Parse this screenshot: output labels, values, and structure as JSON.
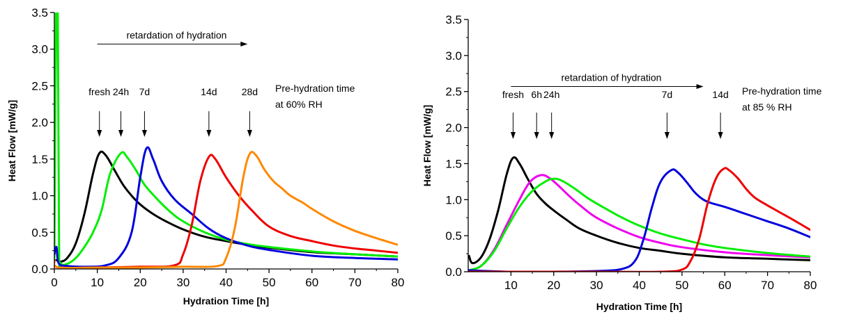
{
  "chart_data": [
    {
      "type": "line",
      "title": "",
      "xlabel": "Hydration Time [h]",
      "ylabel": "Heat Flow [mW/g]",
      "xlim": [
        0,
        80
      ],
      "ylim": [
        0,
        3.5
      ],
      "xticks": [
        0,
        10,
        20,
        30,
        40,
        50,
        60,
        70,
        80
      ],
      "yticks": [
        0.0,
        0.5,
        1.0,
        1.5,
        2.0,
        2.5,
        3.0,
        3.5
      ],
      "tick_labels_x": [
        "0",
        "10",
        "20",
        "30",
        "40",
        "50",
        "60",
        "70",
        "80"
      ],
      "tick_labels_y": [
        "0.0",
        "0.5",
        "1.0",
        "1.5",
        "2.0",
        "2.5",
        "3.0",
        "3.5"
      ],
      "grid": false,
      "legend": null,
      "retardation_label": "retardation of hydration",
      "retardation_arrow": {
        "from": 10,
        "to": 45,
        "y": 3.07
      },
      "condition_label": [
        "Pre-hydration time",
        "at 60% RH"
      ],
      "series": [
        {
          "label": "fresh",
          "color": "#000000",
          "arrow_x": 10.5,
          "points": [
            [
              0.5,
              0.12
            ],
            [
              1.5,
              0.1
            ],
            [
              3,
              0.15
            ],
            [
              5,
              0.35
            ],
            [
              7,
              0.75
            ],
            [
              9,
              1.3
            ],
            [
              10.5,
              1.58
            ],
            [
              12,
              1.55
            ],
            [
              14,
              1.35
            ],
            [
              16,
              1.15
            ],
            [
              18,
              1.0
            ],
            [
              20,
              0.88
            ],
            [
              23,
              0.75
            ],
            [
              26,
              0.65
            ],
            [
              30,
              0.54
            ],
            [
              35,
              0.44
            ],
            [
              40,
              0.38
            ],
            [
              45,
              0.33
            ],
            [
              50,
              0.29
            ],
            [
              60,
              0.23
            ],
            [
              70,
              0.2
            ],
            [
              80,
              0.17
            ]
          ]
        },
        {
          "label": "24h",
          "color": "#00ee00",
          "arrow_x": 15.5,
          "spike": true,
          "points": [
            [
              0,
              0.1
            ],
            [
              0.4,
              3.5
            ],
            [
              0.8,
              3.5
            ],
            [
              1.1,
              0.3
            ],
            [
              1.5,
              0.08
            ],
            [
              3,
              0.07
            ],
            [
              5,
              0.15
            ],
            [
              7,
              0.3
            ],
            [
              9,
              0.5
            ],
            [
              11,
              0.8
            ],
            [
              13,
              1.3
            ],
            [
              15.5,
              1.58
            ],
            [
              17,
              1.52
            ],
            [
              19,
              1.35
            ],
            [
              21,
              1.15
            ],
            [
              24,
              0.95
            ],
            [
              27,
              0.78
            ],
            [
              30,
              0.65
            ],
            [
              35,
              0.5
            ],
            [
              40,
              0.4
            ],
            [
              45,
              0.34
            ],
            [
              50,
              0.3
            ],
            [
              60,
              0.24
            ],
            [
              70,
              0.2
            ],
            [
              80,
              0.17
            ]
          ]
        },
        {
          "label": "7d",
          "color": "#0000dd",
          "arrow_x": 21,
          "spike": true,
          "points": [
            [
              0,
              0.2
            ],
            [
              0.5,
              0.3
            ],
            [
              1,
              0.08
            ],
            [
              3,
              0.04
            ],
            [
              8,
              0.03
            ],
            [
              12,
              0.05
            ],
            [
              15,
              0.15
            ],
            [
              18,
              0.5
            ],
            [
              20,
              1.25
            ],
            [
              21.5,
              1.65
            ],
            [
              23,
              1.5
            ],
            [
              25,
              1.2
            ],
            [
              28,
              0.95
            ],
            [
              32,
              0.75
            ],
            [
              36,
              0.55
            ],
            [
              40,
              0.42
            ],
            [
              45,
              0.32
            ],
            [
              50,
              0.26
            ],
            [
              60,
              0.18
            ],
            [
              70,
              0.15
            ],
            [
              80,
              0.13
            ]
          ]
        },
        {
          "label": "14d",
          "color": "#ee0000",
          "arrow_x": 36,
          "points": [
            [
              0,
              0.12
            ],
            [
              1,
              0.02
            ],
            [
              10,
              0.02
            ],
            [
              20,
              0.03
            ],
            [
              28,
              0.05
            ],
            [
              30,
              0.2
            ],
            [
              32,
              0.6
            ],
            [
              34,
              1.2
            ],
            [
              36,
              1.53
            ],
            [
              37.5,
              1.5
            ],
            [
              40,
              1.25
            ],
            [
              43,
              1.0
            ],
            [
              46,
              0.8
            ],
            [
              50,
              0.58
            ],
            [
              55,
              0.45
            ],
            [
              60,
              0.38
            ],
            [
              65,
              0.32
            ],
            [
              70,
              0.28
            ],
            [
              75,
              0.25
            ],
            [
              80,
              0.22
            ]
          ]
        },
        {
          "label": "28d",
          "color": "#ff8800",
          "arrow_x": 45.5,
          "points": [
            [
              0,
              0.1
            ],
            [
              1,
              0.02
            ],
            [
              10,
              0.02
            ],
            [
              20,
              0.02
            ],
            [
              30,
              0.03
            ],
            [
              38,
              0.04
            ],
            [
              40,
              0.15
            ],
            [
              42,
              0.55
            ],
            [
              44,
              1.25
            ],
            [
              45.5,
              1.57
            ],
            [
              47,
              1.55
            ],
            [
              49,
              1.35
            ],
            [
              51,
              1.2
            ],
            [
              53,
              1.1
            ],
            [
              55,
              1.0
            ],
            [
              58,
              0.9
            ],
            [
              60,
              0.82
            ],
            [
              65,
              0.65
            ],
            [
              70,
              0.52
            ],
            [
              75,
              0.42
            ],
            [
              80,
              0.33
            ]
          ]
        }
      ]
    },
    {
      "type": "line",
      "title": "",
      "xlabel": "Hydration Time [h]",
      "ylabel": "Heat Flow [mW/g]",
      "xlim": [
        0,
        80
      ],
      "ylim": [
        0,
        3.5
      ],
      "xticks": [
        10,
        20,
        30,
        40,
        50,
        60,
        70,
        80
      ],
      "yticks": [
        0.0,
        0.5,
        1.0,
        1.5,
        2.0,
        2.5,
        3.0,
        3.5
      ],
      "tick_labels_x": [
        "10",
        "20",
        "30",
        "40",
        "50",
        "60",
        "70",
        "80"
      ],
      "tick_labels_y": [
        "0.0",
        "0.5",
        "1.0",
        "1.5",
        "2.0",
        "2.5",
        "3.0",
        "3.5"
      ],
      "grid": false,
      "legend": null,
      "retardation_label": "retardation of hydration",
      "retardation_arrow": {
        "from": 10,
        "to": 55,
        "y": 2.57
      },
      "condition_label": [
        "Pre-hydration time",
        "at 85 % RH"
      ],
      "series": [
        {
          "label": "fresh",
          "color": "#000000",
          "arrow_x": 10.5,
          "points": [
            [
              0.2,
              0.22
            ],
            [
              1,
              0.12
            ],
            [
              3,
              0.2
            ],
            [
              5,
              0.45
            ],
            [
              7,
              0.85
            ],
            [
              9,
              1.35
            ],
            [
              10.5,
              1.58
            ],
            [
              12,
              1.5
            ],
            [
              14,
              1.28
            ],
            [
              16,
              1.08
            ],
            [
              18,
              0.95
            ],
            [
              20,
              0.85
            ],
            [
              23,
              0.72
            ],
            [
              26,
              0.6
            ],
            [
              30,
              0.5
            ],
            [
              35,
              0.4
            ],
            [
              40,
              0.33
            ],
            [
              45,
              0.29
            ],
            [
              50,
              0.25
            ],
            [
              60,
              0.2
            ],
            [
              70,
              0.18
            ],
            [
              80,
              0.16
            ]
          ]
        },
        {
          "label": "6h",
          "color": "#ee00ee",
          "arrow_x": 16,
          "points": [
            [
              0.2,
              0.02
            ],
            [
              3,
              0.08
            ],
            [
              6,
              0.3
            ],
            [
              9,
              0.65
            ],
            [
              12,
              1.0
            ],
            [
              14.5,
              1.25
            ],
            [
              17,
              1.34
            ],
            [
              19,
              1.3
            ],
            [
              21,
              1.2
            ],
            [
              24,
              1.03
            ],
            [
              27,
              0.88
            ],
            [
              30,
              0.75
            ],
            [
              35,
              0.6
            ],
            [
              40,
              0.48
            ],
            [
              45,
              0.4
            ],
            [
              50,
              0.34
            ],
            [
              60,
              0.27
            ],
            [
              70,
              0.23
            ],
            [
              80,
              0.2
            ]
          ]
        },
        {
          "label": "24h",
          "color": "#00ee00",
          "arrow_x": 19.5,
          "points": [
            [
              0.2,
              0.02
            ],
            [
              3,
              0.08
            ],
            [
              6,
              0.28
            ],
            [
              9,
              0.6
            ],
            [
              12,
              0.9
            ],
            [
              15,
              1.12
            ],
            [
              18,
              1.25
            ],
            [
              20,
              1.29
            ],
            [
              22,
              1.26
            ],
            [
              25,
              1.15
            ],
            [
              28,
              1.02
            ],
            [
              32,
              0.88
            ],
            [
              36,
              0.75
            ],
            [
              40,
              0.64
            ],
            [
              45,
              0.53
            ],
            [
              50,
              0.45
            ],
            [
              55,
              0.38
            ],
            [
              60,
              0.33
            ],
            [
              70,
              0.26
            ],
            [
              80,
              0.21
            ]
          ]
        },
        {
          "label": "7d",
          "color": "#0000dd",
          "arrow_x": 46.5,
          "points": [
            [
              0.2,
              0.02
            ],
            [
              10,
              0.0
            ],
            [
              20,
              0.0
            ],
            [
              30,
              0.01
            ],
            [
              36,
              0.04
            ],
            [
              39,
              0.15
            ],
            [
              41,
              0.45
            ],
            [
              43,
              0.9
            ],
            [
              45,
              1.25
            ],
            [
              47.5,
              1.41
            ],
            [
              49,
              1.38
            ],
            [
              51,
              1.25
            ],
            [
              53,
              1.1
            ],
            [
              55,
              1.0
            ],
            [
              57,
              0.95
            ],
            [
              60,
              0.9
            ],
            [
              65,
              0.8
            ],
            [
              70,
              0.7
            ],
            [
              75,
              0.6
            ],
            [
              80,
              0.48
            ]
          ]
        },
        {
          "label": "14d",
          "color": "#ee0000",
          "arrow_x": 59,
          "points": [
            [
              0.2,
              0.0
            ],
            [
              10,
              0.0
            ],
            [
              30,
              0.0
            ],
            [
              45,
              0.0
            ],
            [
              50,
              0.03
            ],
            [
              52,
              0.15
            ],
            [
              54,
              0.45
            ],
            [
              56,
              0.95
            ],
            [
              58,
              1.3
            ],
            [
              59.8,
              1.43
            ],
            [
              61,
              1.41
            ],
            [
              63,
              1.3
            ],
            [
              65,
              1.15
            ],
            [
              67,
              1.03
            ],
            [
              70,
              0.92
            ],
            [
              73,
              0.82
            ],
            [
              76,
              0.72
            ],
            [
              80,
              0.58
            ]
          ]
        }
      ]
    }
  ]
}
